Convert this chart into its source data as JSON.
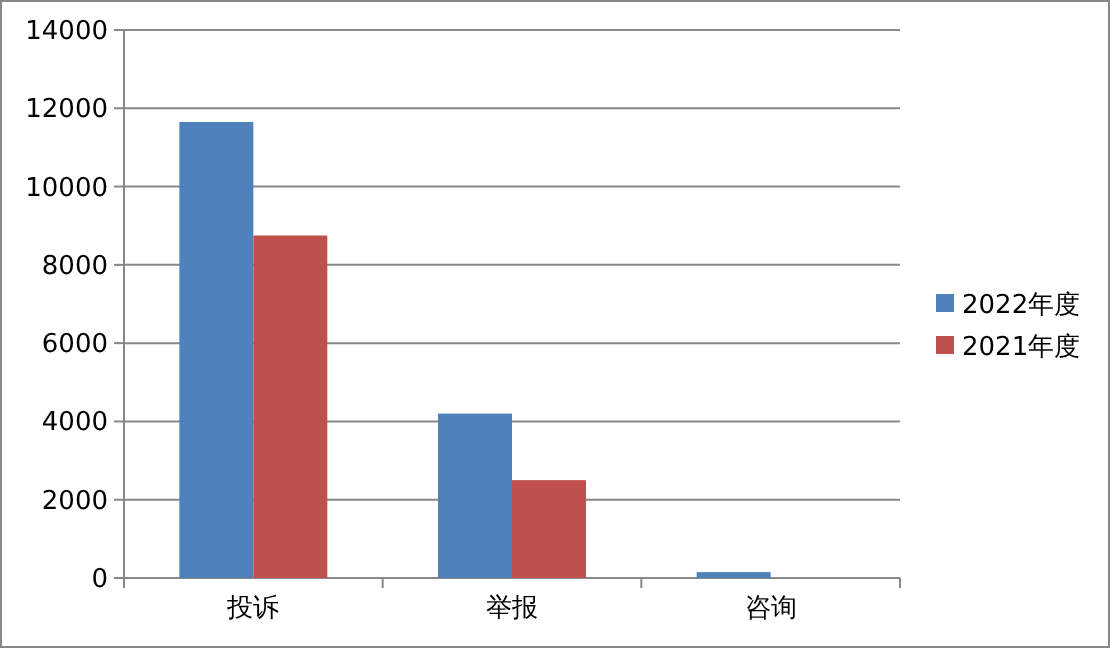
{
  "chart_data": {
    "type": "bar",
    "categories": [
      "投诉",
      "举报",
      "咨询"
    ],
    "series": [
      {
        "name": "2022年度",
        "color": "#4f81bd",
        "values": [
          11650,
          4200,
          150
        ]
      },
      {
        "name": "2021年度",
        "color": "#c0504d",
        "values": [
          8750,
          2500,
          0
        ]
      }
    ],
    "ylim": [
      0,
      14000
    ],
    "yticks": [
      0,
      2000,
      4000,
      6000,
      8000,
      10000,
      12000,
      14000
    ],
    "grid": "y",
    "legend": "right"
  }
}
